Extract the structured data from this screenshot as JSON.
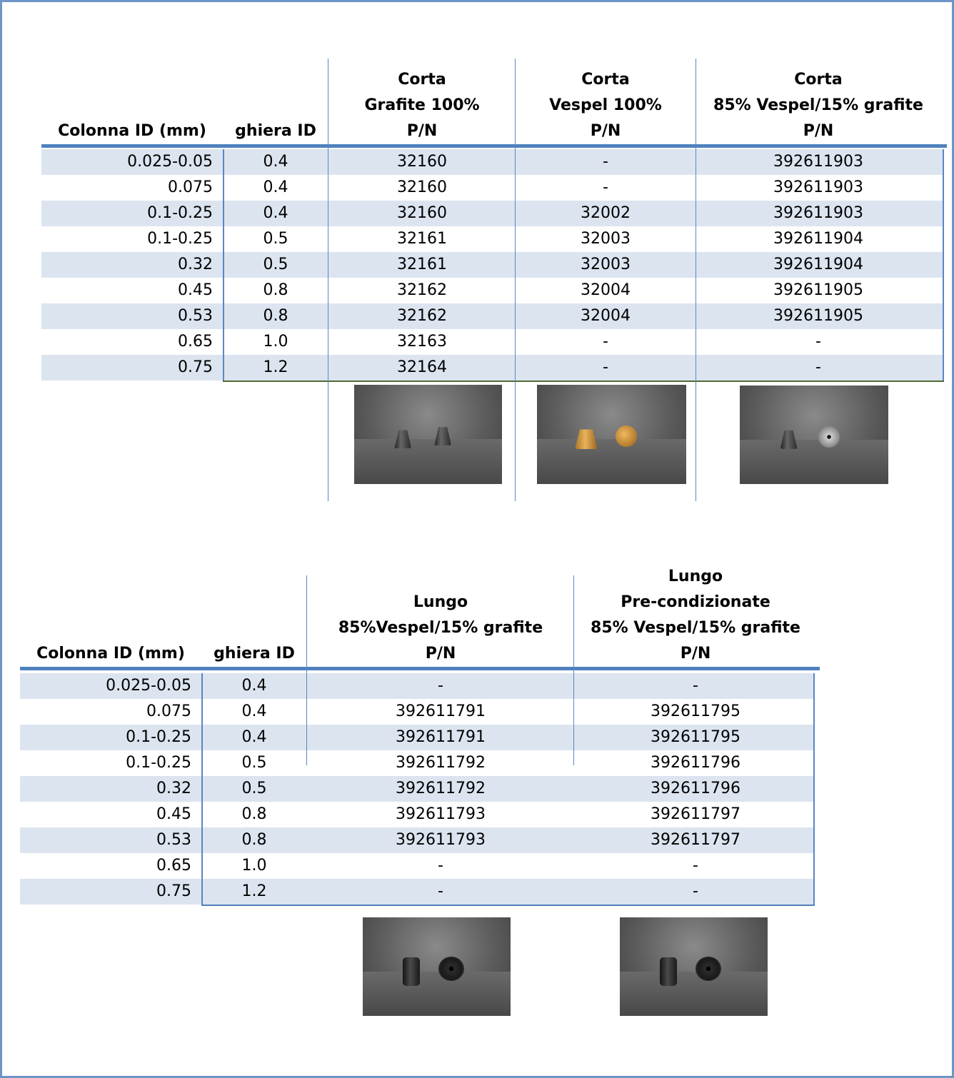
{
  "table1": {
    "headers": [
      {
        "lines": [
          "Colonna ID (mm)"
        ]
      },
      {
        "lines": [
          "ghiera ID"
        ]
      },
      {
        "lines": [
          "Corta",
          "Grafite 100%",
          "P/N"
        ]
      },
      {
        "lines": [
          "Corta",
          "Vespel 100%",
          "P/N"
        ]
      },
      {
        "lines": [
          "Corta",
          "85% Vespel/15% grafite",
          "P/N"
        ]
      }
    ],
    "rows": [
      [
        "0.025-0.05",
        "0.4",
        "32160",
        "-",
        "392611903"
      ],
      [
        "0.075",
        "0.4",
        "32160",
        "-",
        "392611903"
      ],
      [
        "0.1-0.25",
        "0.4",
        "32160",
        "32002",
        "392611903"
      ],
      [
        "0.1-0.25",
        "0.5",
        "32161",
        "32003",
        "392611904"
      ],
      [
        "0.32",
        "0.5",
        "32161",
        "32003",
        "392611904"
      ],
      [
        "0.45",
        "0.8",
        "32162",
        "32004",
        "392611905"
      ],
      [
        "0.53",
        "0.8",
        "32162",
        "32004",
        "392611905"
      ],
      [
        "0.65",
        "1.0",
        "32163",
        "-",
        "-"
      ],
      [
        "0.75",
        "1.2",
        "32164",
        "-",
        "-"
      ]
    ],
    "photos": [
      "graphite-ferrule-photo",
      "vespel-ferrule-photo",
      "vespel-graphite-ferrule-photo"
    ]
  },
  "table2": {
    "headers": [
      {
        "lines": [
          "Colonna ID (mm)"
        ]
      },
      {
        "lines": [
          "ghiera ID"
        ]
      },
      {
        "lines": [
          "Lungo",
          "85%Vespel/15% grafite",
          "P/N"
        ]
      },
      {
        "lines": [
          "Lungo",
          "Pre-condizionate",
          "85% Vespel/15% grafite",
          "P/N"
        ]
      }
    ],
    "rows": [
      [
        "0.025-0.05",
        "0.4",
        "-",
        "-"
      ],
      [
        "0.075",
        "0.4",
        "392611791",
        "392611795"
      ],
      [
        "0.1-0.25",
        "0.4",
        "392611791",
        "392611795"
      ],
      [
        "0.1-0.25",
        "0.5",
        "392611792",
        "392611796"
      ],
      [
        "0.32",
        "0.5",
        "392611792",
        "392611796"
      ],
      [
        "0.45",
        "0.8",
        "392611793",
        "392611797"
      ],
      [
        "0.53",
        "0.8",
        "392611793",
        "392611797"
      ],
      [
        "0.65",
        "1.0",
        "-",
        "-"
      ],
      [
        "0.75",
        "1.2",
        "-",
        "-"
      ]
    ],
    "photos": [
      "long-ferrule-photo",
      "preconditioned-ferrule-photo"
    ]
  },
  "colors": {
    "frame": "#6f95c7",
    "row_shade": "#dce4ef",
    "header_rule": "#4f81bd",
    "bottom_rule": "#4e6b2e"
  }
}
